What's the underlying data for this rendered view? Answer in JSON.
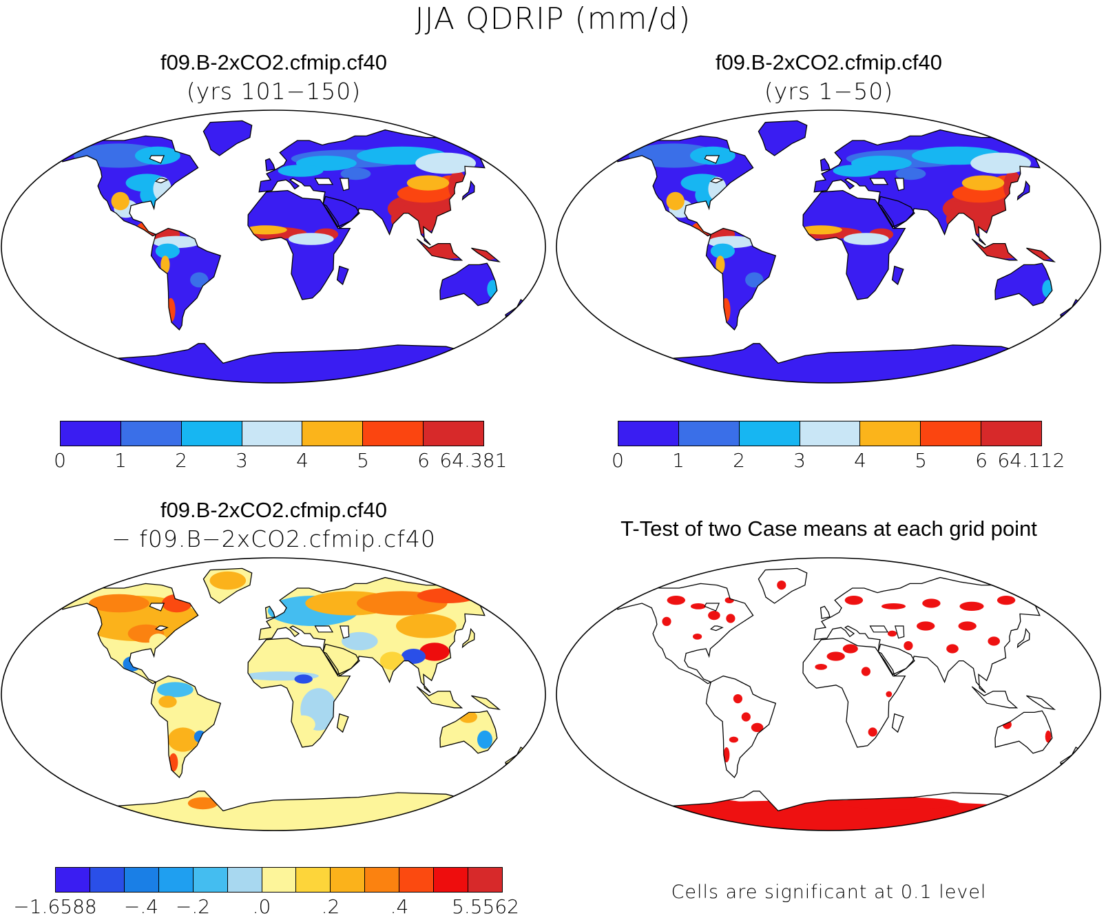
{
  "figure": {
    "title": "JJA QDRIP (mm/d)"
  },
  "panels": [
    {
      "title": "f09.B-2xCO2.cfmip.cf40",
      "subtitle": "(yrs 101−150)",
      "colorbar": {
        "colors": [
          "#3a1df2",
          "#3a6fe8",
          "#17b6f2",
          "#c9e6f6",
          "#fbb41b",
          "#fb4510",
          "#d7292a"
        ],
        "tick_labels": [
          "0",
          "1",
          "2",
          "3",
          "4",
          "5",
          "6",
          "64.381"
        ]
      }
    },
    {
      "title": "f09.B-2xCO2.cfmip.cf40",
      "subtitle": "(yrs 1−50)",
      "colorbar": {
        "colors": [
          "#3a1df2",
          "#3a6fe8",
          "#17b6f2",
          "#c9e6f6",
          "#fbb41b",
          "#fb4510",
          "#d7292a"
        ],
        "tick_labels": [
          "0",
          "1",
          "2",
          "3",
          "4",
          "5",
          "6",
          "64.112"
        ]
      }
    },
    {
      "title": "f09.B-2xCO2.cfmip.cf40",
      "subtitle": "− f09.B−2xCO2.cfmip.cf40",
      "colorbar": {
        "colors": [
          "#3a1df2",
          "#2a4fe8",
          "#1a7fe6",
          "#1f9ff0",
          "#44bdf0",
          "#a8d8f0",
          "#fdf59a",
          "#fdd53a",
          "#fbb21b",
          "#fb8210",
          "#fb4a10",
          "#ee0d0d",
          "#d7292a"
        ],
        "tick_labels": [
          "−1.6588",
          "−.4",
          "−.2",
          ".0",
          ".2",
          ".4",
          "5.5562"
        ]
      }
    },
    {
      "title": "T-Test of two Case means at each grid point",
      "note": "Cells are significant at 0.1 level",
      "significance_color": "#ee1111"
    }
  ]
}
